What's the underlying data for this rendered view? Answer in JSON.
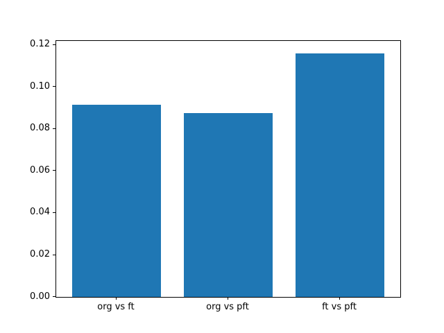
{
  "chart_data": {
    "type": "bar",
    "categories": [
      "org vs ft",
      "org vs pft",
      "ft vs pft"
    ],
    "values": [
      0.0914,
      0.0877,
      0.1161
    ],
    "title": "",
    "xlabel": "",
    "ylabel": "",
    "ylim": [
      0,
      0.1219
    ],
    "xlim": [
      -0.54,
      2.54
    ],
    "bar_positions": [
      0,
      1,
      2
    ],
    "bar_width_data_units": 0.8,
    "yticks": [
      {
        "value": 0.0,
        "label": "0.00"
      },
      {
        "value": 0.02,
        "label": "0.02"
      },
      {
        "value": 0.04,
        "label": "0.04"
      },
      {
        "value": 0.06,
        "label": "0.06"
      },
      {
        "value": 0.08,
        "label": "0.08"
      },
      {
        "value": 0.1,
        "label": "0.10"
      },
      {
        "value": 0.12,
        "label": "0.12"
      }
    ],
    "bar_color": "#1f77b4",
    "spine_color": "#000000",
    "background_color": "#ffffff",
    "grid": false,
    "legend": null
  }
}
